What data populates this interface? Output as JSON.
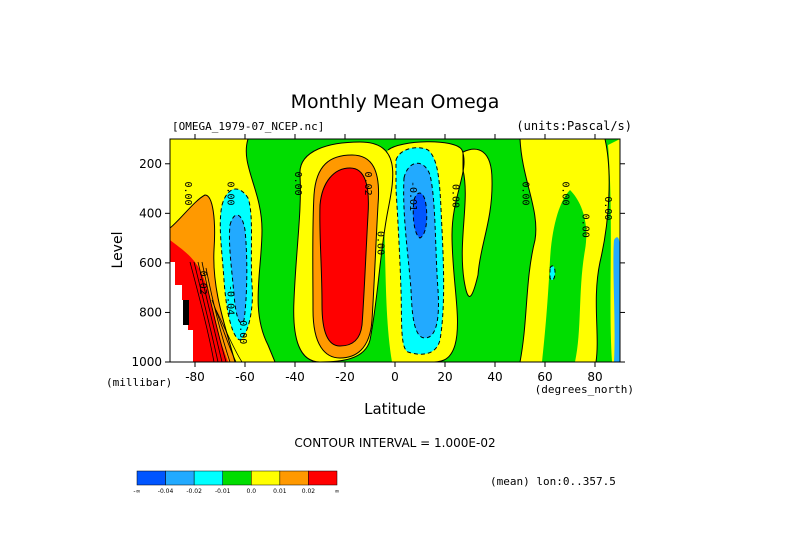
{
  "chart_data": {
    "type": "contour",
    "title": "Monthly Mean Omega",
    "dataset": "[OMEGA_1979-07_NCEP.nc]",
    "units": "(units:Pascal/s)",
    "xlabel": "Latitude",
    "x_units": "(degrees_north)",
    "ylabel": "Level",
    "y_units": "(millibar)",
    "xlim": [
      -90,
      90
    ],
    "ylim": [
      1000,
      100
    ],
    "x_ticks": [
      -80,
      -60,
      -40,
      -20,
      0,
      20,
      40,
      60,
      80
    ],
    "x_tick_labels": [
      "-80",
      "-60",
      "-40",
      "-20",
      "0",
      "20",
      "40",
      "60",
      "80"
    ],
    "y_ticks": [
      200,
      400,
      600,
      800,
      1000
    ],
    "y_tick_labels": [
      "200",
      "400",
      "600",
      "800",
      "1000"
    ],
    "contour_interval": "CONTOUR INTERVAL = 1.000E-02",
    "mean_note": "(mean) lon:0..357.5",
    "colorbar": {
      "colors": [
        "#0055ff",
        "#22aaff",
        "#00ffff",
        "#00dd00",
        "#ffff00",
        "#ff9900",
        "#ff0000"
      ],
      "labels": [
        "-∞",
        "-0.04",
        "-0.02",
        "-0.01",
        "0.0",
        "0.01",
        "0.02",
        "∞"
      ]
    },
    "contour_labels": [
      {
        "text": "0.00",
        "lat": -84,
        "lev": 320
      },
      {
        "text": "0.00",
        "lat": -67,
        "lev": 320
      },
      {
        "text": "0.00",
        "lat": -40,
        "lev": 280
      },
      {
        "text": "0.02",
        "lat": -12,
        "lev": 280
      },
      {
        "text": "0.00",
        "lat": -7,
        "lev": 520
      },
      {
        "text": "0.02",
        "lat": -78,
        "lev": 680
      },
      {
        "text": "-0.04",
        "lat": -67,
        "lev": 750
      },
      {
        "text": "0.00",
        "lat": -62,
        "lev": 880
      },
      {
        "text": "-0.01",
        "lat": 6,
        "lev": 330
      },
      {
        "text": "0.00",
        "lat": 23,
        "lev": 330
      },
      {
        "text": "0.00",
        "lat": 51,
        "lev": 320
      },
      {
        "text": "0.00",
        "lat": 67,
        "lev": 320
      },
      {
        "text": "0.00",
        "lat": 75,
        "lev": 450
      },
      {
        "text": "0.00",
        "lat": 84,
        "lev": 380
      }
    ]
  }
}
